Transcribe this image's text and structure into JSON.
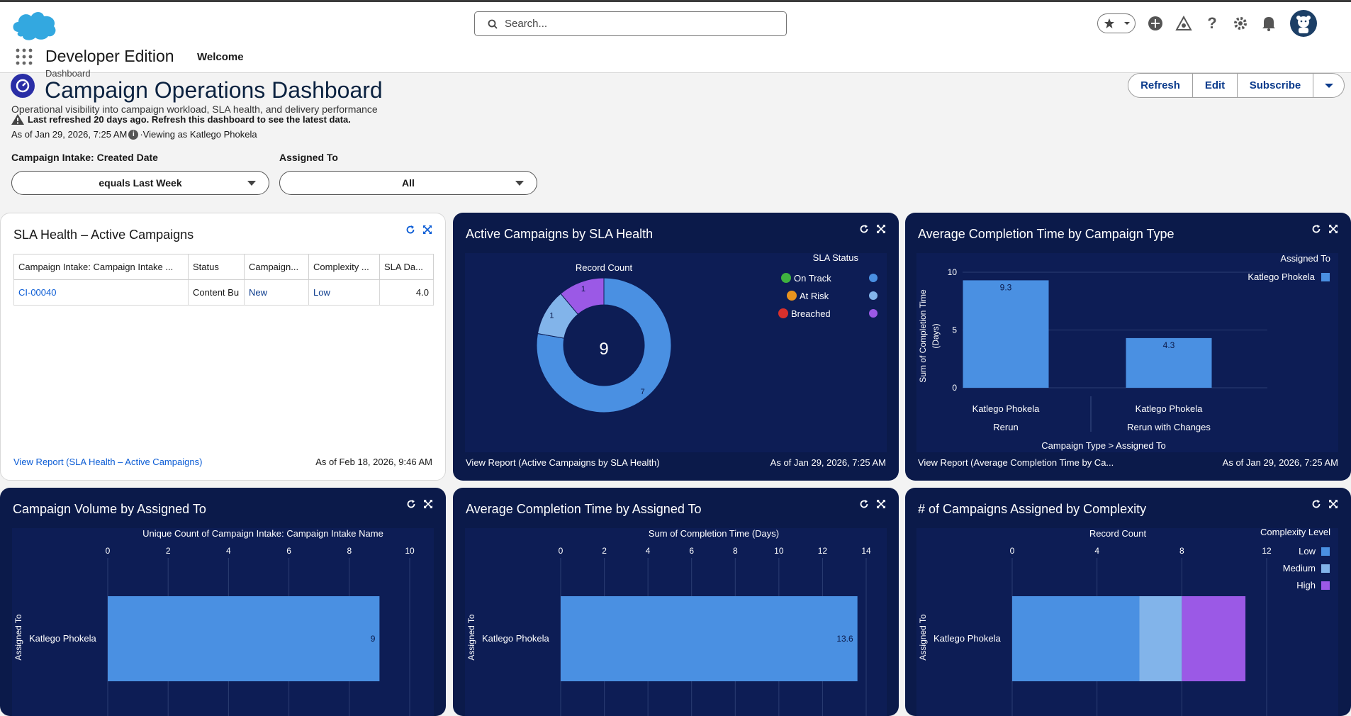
{
  "header": {
    "search_placeholder": "Search...",
    "icons": [
      "favorites-star-icon",
      "add-icon",
      "trailhead-icon",
      "help-icon",
      "setup-gear-icon",
      "notifications-bell-icon",
      "user-avatar"
    ]
  },
  "app": {
    "name": "Developer Edition",
    "tabs": [
      {
        "label": "Welcome"
      }
    ]
  },
  "dashboard": {
    "eyebrow": "Dashboard",
    "title": "Campaign Operations Dashboard",
    "subtitle": "Operational visibility into campaign workload, SLA health, and delivery performance",
    "warning": "Last refreshed 20 days ago. Refresh this dashboard to see the latest data.",
    "as_of": "As of Jan 29, 2026, 7:25 AM",
    "viewing_as": "·Viewing as Katlego Phokela",
    "buttons": {
      "refresh": "Refresh",
      "edit": "Edit",
      "subscribe": "Subscribe"
    }
  },
  "filters": [
    {
      "label": "Campaign Intake: Created Date",
      "value": "equals Last Week"
    },
    {
      "label": "Assigned To",
      "value": "All"
    }
  ],
  "colors": {
    "accent_blue": "#4a90e2",
    "light_blue": "#82b4ea",
    "purple": "#9b59e6",
    "dark_bg": "#0b1a4a",
    "plot_bg": "#0d1d55"
  },
  "widgets": {
    "sla_table": {
      "title": "SLA Health – Active Campaigns",
      "columns": [
        "Campaign Intake: Campaign Intake ...",
        "Status",
        "Campaign...",
        "Complexity ...",
        "SLA Da..."
      ],
      "rows": [
        [
          "CI-00040",
          "Content Bu",
          "New",
          "Low",
          "4.0"
        ]
      ],
      "footer_link": "View Report (SLA Health – Active Campaigns)",
      "as_of": "As of Feb 18, 2026, 9:46 AM"
    },
    "donut": {
      "title": "Active Campaigns by SLA Health",
      "metric": "Record Count",
      "center_total": "9",
      "legend_title": "SLA Status",
      "legend": [
        "On Track",
        "At Risk",
        "Breached"
      ],
      "footer_link": "View Report (Active Campaigns by SLA Health)",
      "as_of": "As of Jan 29, 2026, 7:25 AM"
    },
    "avg_type": {
      "title": "Average Completion Time by Campaign Type",
      "legend_title": "Assigned To",
      "legend_item": "Katlego Phokela",
      "ylabel_1": "Sum of Completion Time",
      "ylabel_2": "(Days)",
      "xlabel": "Campaign Type  >  Assigned To",
      "footer_link": "View Report (Average Completion Time by Ca...",
      "as_of": "As of Jan 29, 2026, 7:25 AM"
    },
    "volume": {
      "title": "Campaign Volume by Assigned To",
      "metric": "Unique Count of Campaign Intake: Campaign Intake Name",
      "ylabel": "Assigned To"
    },
    "avg_assigned": {
      "title": "Average Completion Time by Assigned To",
      "metric": "Sum of Completion Time (Days)",
      "ylabel": "Assigned To"
    },
    "complexity": {
      "title": "# of Campaigns Assigned by Complexity",
      "metric": "Record Count",
      "ylabel": "Assigned To",
      "legend_title": "Complexity Level",
      "legend": [
        "Low",
        "Medium",
        "High"
      ]
    }
  },
  "chart_data": [
    {
      "type": "pie",
      "title": "Active Campaigns by SLA Health",
      "categories": [
        "On Track",
        "At Risk",
        "Breached"
      ],
      "values": [
        7,
        1,
        1
      ],
      "colors": [
        "#4a90e2",
        "#82b4ea",
        "#9b59e6"
      ],
      "center_label": "9",
      "legend_position": "top-right"
    },
    {
      "type": "bar",
      "title": "Average Completion Time by Campaign Type",
      "categories": [
        "Katlego Phokela",
        "Katlego Phokela"
      ],
      "groups": [
        "Rerun",
        "Rerun with Changes"
      ],
      "values": [
        9.3,
        4.3
      ],
      "data_labels": [
        "9.3",
        "4.3"
      ],
      "ylim": [
        0,
        10
      ],
      "y_ticks": [
        0,
        5,
        10
      ],
      "legend_position": "top-right"
    },
    {
      "type": "bar",
      "orientation": "horizontal",
      "title": "Campaign Volume by Assigned To",
      "categories": [
        "Katlego Phokela"
      ],
      "values": [
        9
      ],
      "data_labels": [
        "9"
      ],
      "xlim": [
        0,
        10
      ],
      "x_ticks": [
        0,
        2,
        4,
        6,
        8,
        10
      ]
    },
    {
      "type": "bar",
      "orientation": "horizontal",
      "title": "Average Completion Time by Assigned To",
      "categories": [
        "Katlego Phokela"
      ],
      "values": [
        13.6
      ],
      "data_labels": [
        "13.6"
      ],
      "xlim": [
        0,
        14
      ],
      "x_ticks": [
        0,
        2,
        4,
        6,
        8,
        10,
        12,
        14
      ]
    },
    {
      "type": "bar",
      "orientation": "horizontal",
      "stacked": true,
      "title": "# of Campaigns Assigned by Complexity",
      "categories": [
        "Katlego Phokela"
      ],
      "series": [
        {
          "name": "Low",
          "values": [
            6
          ],
          "color": "#4a90e2"
        },
        {
          "name": "Medium",
          "values": [
            2
          ],
          "color": "#82b4ea"
        },
        {
          "name": "High",
          "values": [
            3
          ],
          "color": "#9b59e6"
        }
      ],
      "xlim": [
        0,
        12
      ],
      "x_ticks": [
        0,
        4,
        8,
        12
      ],
      "legend_position": "top-right"
    }
  ]
}
